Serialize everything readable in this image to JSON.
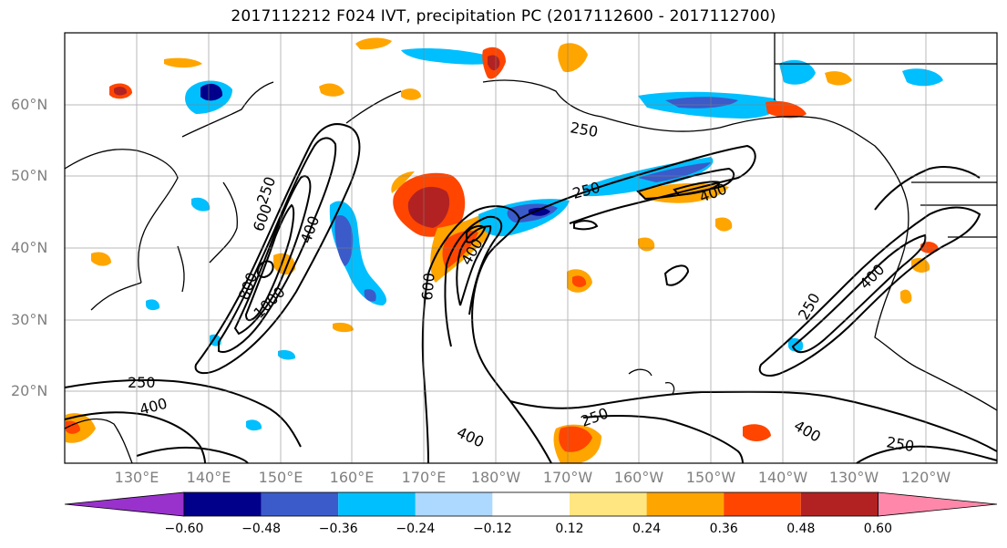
{
  "title": "2017112212 F024 IVT, precipitation PC (2017112600 - 2017112700)",
  "map": {
    "lat_labels": [
      "60°N",
      "50°N",
      "40°N",
      "30°N",
      "20°N"
    ],
    "lon_labels": [
      "130°E",
      "140°E",
      "150°E",
      "160°E",
      "170°E",
      "180°W",
      "170°W",
      "160°W",
      "150°W",
      "140°W",
      "130°W",
      "120°W"
    ],
    "contour_labels": [
      "250",
      "400",
      "600",
      "800",
      "1000",
      "250",
      "400",
      "600",
      "400",
      "250",
      "400",
      "250",
      "400",
      "400",
      "250",
      "400",
      "250",
      "250"
    ],
    "contour_levels": [
      250,
      400,
      600,
      800,
      1000
    ]
  },
  "colorbar": {
    "ticks": [
      "−0.60",
      "−0.48",
      "−0.36",
      "−0.24",
      "−0.12",
      "0.12",
      "0.24",
      "0.36",
      "0.48",
      "0.60"
    ],
    "colors": [
      "#9932cc",
      "#00008b",
      "#3a5bc9",
      "#00bfff",
      "#add8ff",
      "#ffffff",
      "#ffe680",
      "#ffa500",
      "#ff4500",
      "#b22222",
      "#ff88aa"
    ]
  }
}
